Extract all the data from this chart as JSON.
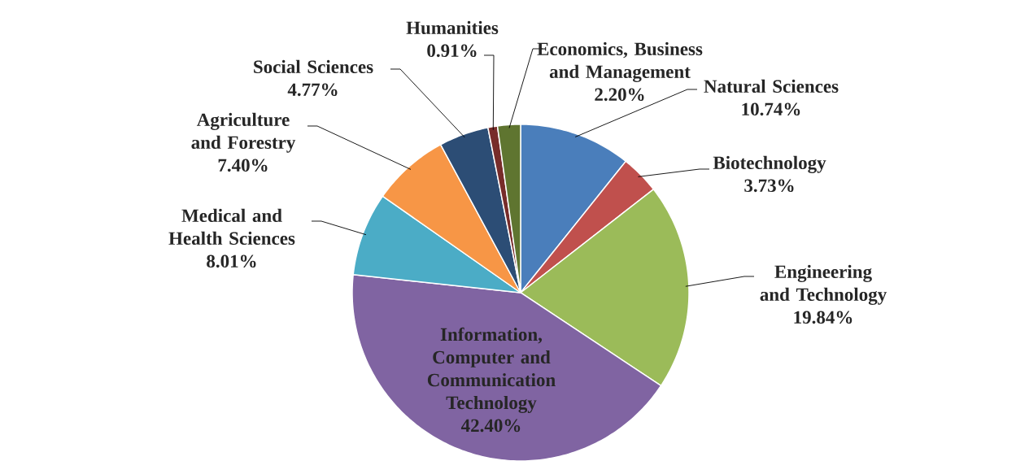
{
  "chart_data": {
    "type": "pie",
    "categories": [
      "Natural Sciences",
      "Biotechnology",
      "Engineering and Technology",
      "Information, Computer and Communication Technology",
      "Medical and Health Sciences",
      "Agriculture and Forestry",
      "Social Sciences",
      "Humanities",
      "Economics, Business and Management"
    ],
    "values": [
      10.74,
      3.73,
      19.84,
      42.4,
      8.01,
      7.4,
      4.77,
      0.91,
      2.2
    ],
    "value_labels": [
      "10.74%",
      "3.73%",
      "19.84%",
      "42.40%",
      "8.01%",
      "7.40%",
      "4.77%",
      "0.91%",
      "2.20%"
    ],
    "colors": [
      "#4a7ebb",
      "#c0504d",
      "#9bbb59",
      "#8064a2",
      "#4bacc6",
      "#f79646",
      "#2c4d75",
      "#772c2a",
      "#5f7530"
    ]
  }
}
